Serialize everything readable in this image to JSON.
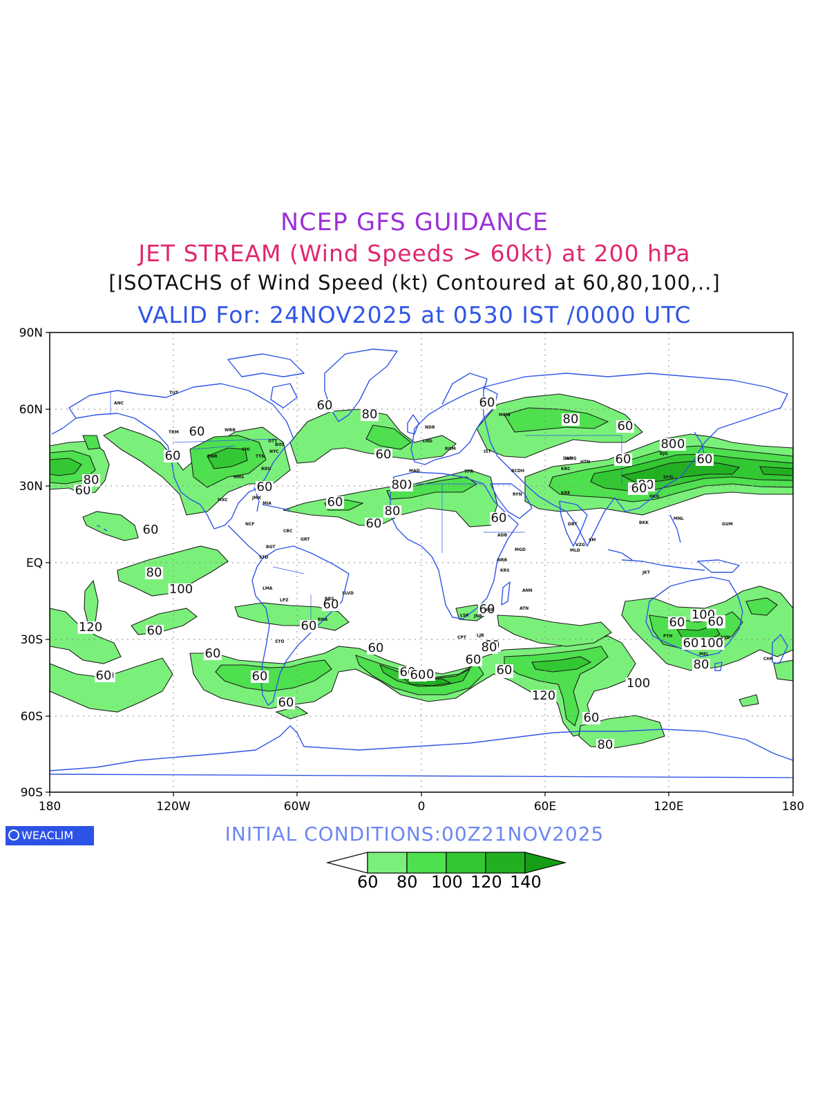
{
  "titles": {
    "line1": "NCEP GFS GUIDANCE",
    "line2": "JET STREAM (Wind Speeds > 60kt) at 200 hPa",
    "line3": "[ISOTACHS of Wind Speed (kt) Contoured at 60,80,100,..]",
    "line4": "VALID For: 24NOV2025 at 0530 IST /0000 UTC"
  },
  "axes": {
    "lat_labels": [
      "90N",
      "60N",
      "30N",
      "EQ",
      "30S",
      "60S",
      "90S"
    ],
    "lon_labels": [
      "180",
      "120W",
      "60W",
      "0",
      "60E",
      "120E",
      "180"
    ]
  },
  "contour_labels": [
    "60",
    "60",
    "80",
    "60",
    "60",
    "60",
    "80",
    "60",
    "60",
    "60",
    "60",
    "80",
    "60",
    "60",
    "80",
    "60",
    "60",
    "60",
    "60",
    "80",
    "60",
    "60",
    "80",
    "100",
    "120",
    "60",
    "60",
    "60",
    "60",
    "60",
    "60",
    "60",
    "60",
    "60",
    "80",
    "60",
    "60",
    "80",
    "120",
    "100",
    "60",
    "80",
    "60",
    "60",
    "80",
    "100",
    "60",
    "80",
    "60",
    "60",
    "60",
    "100",
    "80",
    "60",
    "60",
    "80",
    "60"
  ],
  "stations": [
    "ANC",
    "TUT",
    "TRM",
    "DNR",
    "WRB",
    "CHI",
    "TTN",
    "OTT",
    "NYC",
    "BOS",
    "RDU",
    "HMS",
    "JMX",
    "MIA",
    "MXC",
    "NCF",
    "CBC",
    "GRT",
    "BGT",
    "STD",
    "LMA",
    "LPZ",
    "BRS",
    "SLVD",
    "BNA",
    "STO",
    "NDR",
    "LND",
    "MAD",
    "ROM",
    "IST",
    "MCW",
    "DHB",
    "HTN",
    "KRC",
    "KRE",
    "RYN",
    "WHG",
    "BCDH",
    "ADB",
    "NRB",
    "KRS",
    "MGD",
    "LSK",
    "HRR",
    "JNB",
    "CPT",
    "LJB",
    "TPR",
    "ATN",
    "ANN",
    "DBT",
    "VZG",
    "MLD",
    "SM",
    "BJG",
    "SHG",
    "HKG",
    "MNL",
    "BKK",
    "JKT",
    "GUM",
    "PTH",
    "MEL",
    "SYD",
    "CHR"
  ],
  "logo": "WEACLIM",
  "initial_conditions": "INITIAL CONDITIONS:00Z21NOV2025",
  "legend": {
    "labels": [
      "60",
      "80",
      "100",
      "120",
      "140"
    ],
    "colors": [
      "#ffffff",
      "#7af07a",
      "#4ee04e",
      "#33c833",
      "#22b022",
      "#159e15"
    ]
  },
  "colors": {
    "coast": "#2f55e6",
    "contour": "#1a1a1a",
    "grid": "#888888"
  }
}
